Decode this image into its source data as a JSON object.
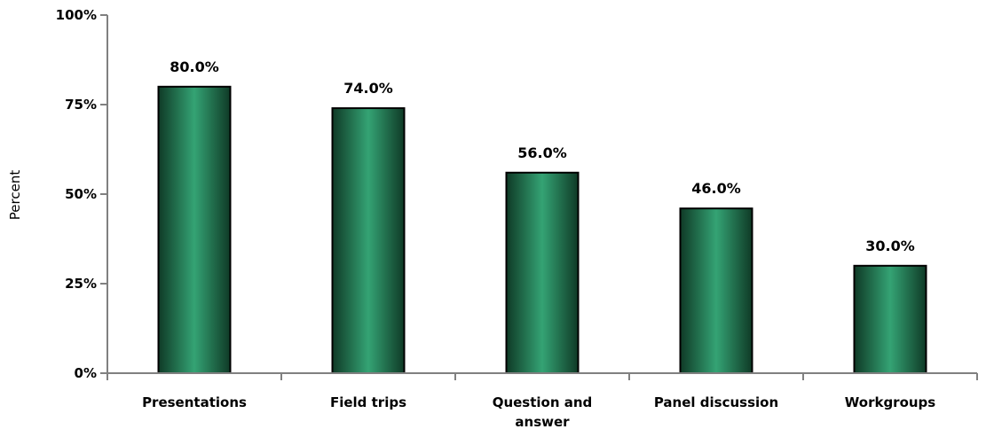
{
  "chart_data": {
    "type": "bar",
    "title": "",
    "xlabel": "",
    "ylabel": "Percent",
    "categories": [
      [
        "Presentations"
      ],
      [
        "Field trips"
      ],
      [
        "Question and",
        "answer"
      ],
      [
        "Panel discussion"
      ],
      [
        "Workgroups"
      ]
    ],
    "values": [
      80.0,
      74.0,
      56.0,
      46.0,
      30.0
    ],
    "data_labels": [
      "80.0%",
      "74.0%",
      "56.0%",
      "46.0%",
      "30.0%"
    ],
    "ylim": [
      0,
      100
    ],
    "yticks": [
      0,
      25,
      50,
      75,
      100
    ],
    "ytick_labels": [
      "0%",
      "25%",
      "50%",
      "75%",
      "100%"
    ],
    "grid": false,
    "legend": "none",
    "colors": {
      "bar_center": "#34a374",
      "bar_edge": "#0f3a26",
      "outline": "#000000"
    }
  }
}
